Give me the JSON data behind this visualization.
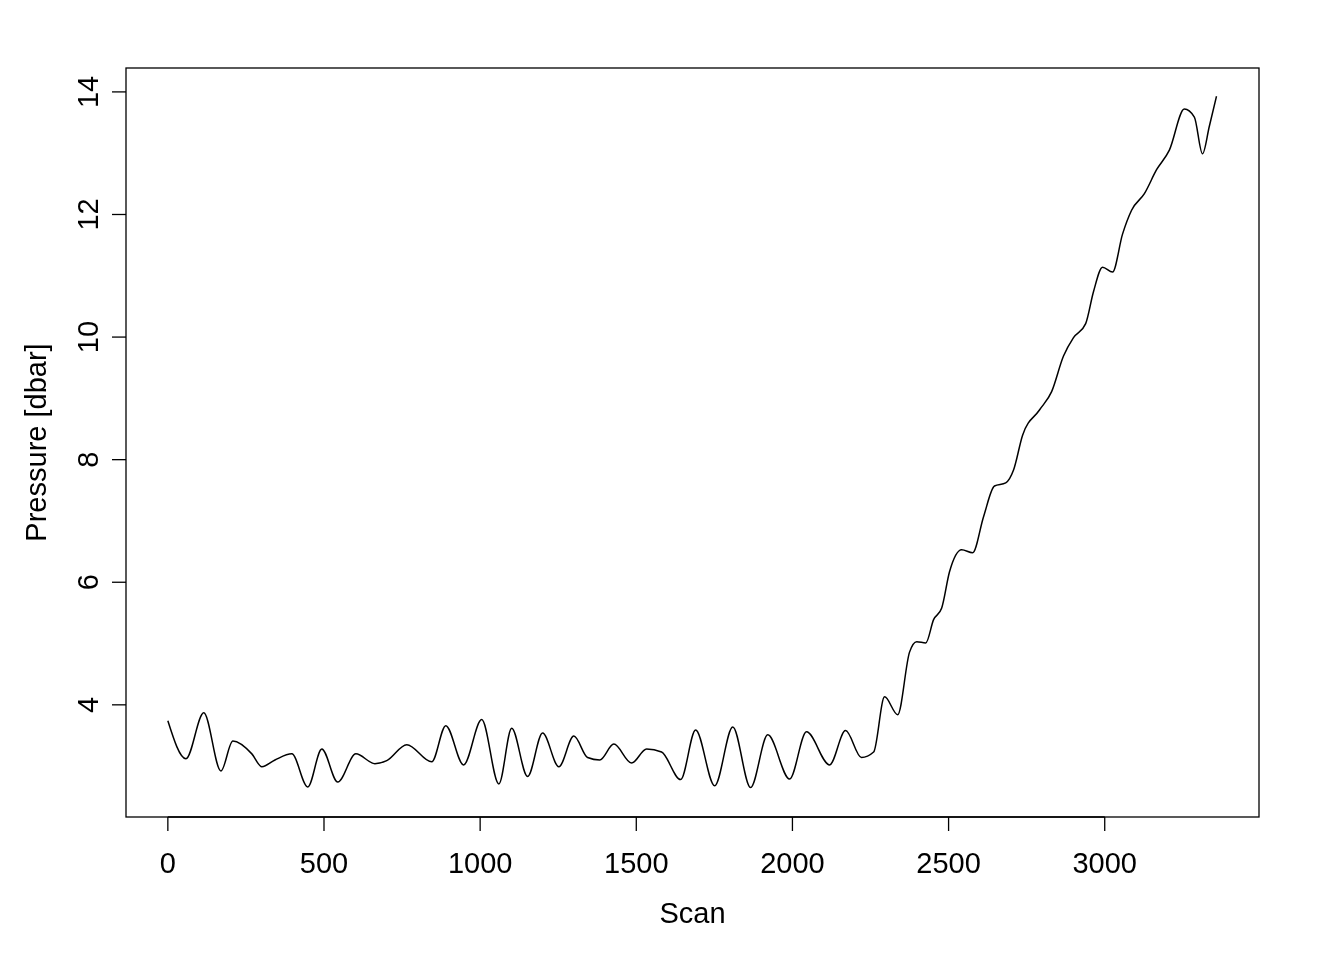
{
  "chart_data": {
    "type": "line",
    "xlabel": "Scan",
    "ylabel": "Pressure [dbar]",
    "x": [
      0,
      58,
      115,
      170,
      208,
      269,
      301,
      343,
      397,
      448,
      493,
      544,
      602,
      663,
      701,
      765,
      845,
      890,
      947,
      1005,
      1060,
      1101,
      1152,
      1200,
      1252,
      1300,
      1344,
      1383,
      1428,
      1485,
      1533,
      1581,
      1642,
      1690,
      1751,
      1809,
      1866,
      1921,
      1991,
      2045,
      2119,
      2170,
      2221,
      2260,
      2295,
      2337,
      2375,
      2398,
      2427,
      2452,
      2478,
      2503,
      2542,
      2577,
      2612,
      2647,
      2683,
      2708,
      2737,
      2791,
      2830,
      2868,
      2900,
      2939,
      2964,
      2993,
      3025,
      3057,
      3086,
      3127,
      3166,
      3207,
      3255,
      3287,
      3313,
      3335,
      3358
    ],
    "series": [
      {
        "color": "#000000",
        "values": [
          3.74,
          3.12,
          3.87,
          2.92,
          3.41,
          3.2,
          2.99,
          3.1,
          3.2,
          2.66,
          3.28,
          2.74,
          3.2,
          3.04,
          3.09,
          3.35,
          3.07,
          3.66,
          3.02,
          3.76,
          2.71,
          3.62,
          2.83,
          3.54,
          2.99,
          3.49,
          3.14,
          3.1,
          3.36,
          3.05,
          3.28,
          3.23,
          2.78,
          3.59,
          2.68,
          3.64,
          2.65,
          3.51,
          2.79,
          3.56,
          3.02,
          3.58,
          3.14,
          3.23,
          4.13,
          3.84,
          4.86,
          5.03,
          5.01,
          5.39,
          5.58,
          6.17,
          6.53,
          6.48,
          7.07,
          7.57,
          7.62,
          7.83,
          8.4,
          8.81,
          9.11,
          9.69,
          9.99,
          10.22,
          10.74,
          11.14,
          11.06,
          11.68,
          12.07,
          12.34,
          12.73,
          13.05,
          13.72,
          13.59,
          12.99,
          13.44,
          13.93
        ]
      }
    ],
    "xlim": [
      -134,
      3494
    ],
    "ylim": [
      2.17,
      14.39
    ],
    "xticks": [
      0,
      500,
      1000,
      1500,
      2000,
      2500,
      3000
    ],
    "yticks": [
      4,
      6,
      8,
      10,
      12,
      14
    ],
    "grid": false,
    "marker": "none",
    "line_style": "solid"
  }
}
